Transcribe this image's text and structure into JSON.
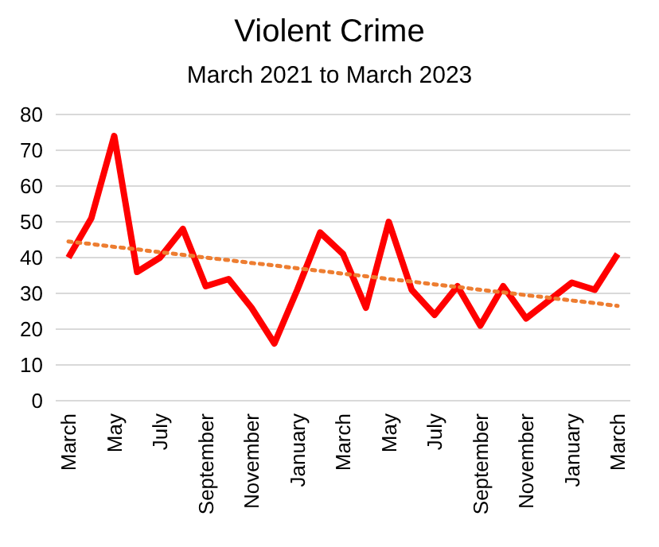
{
  "chart_data": {
    "type": "line",
    "title": "Violent Crime",
    "subtitle": "March 2021 to March 2023",
    "categories": [
      "March",
      null,
      "May",
      null,
      "July",
      null,
      "September",
      null,
      "November",
      null,
      "January",
      null,
      "March",
      null,
      "May",
      null,
      "July",
      null,
      "September",
      null,
      "November",
      null,
      "January",
      null,
      "March"
    ],
    "series": [
      {
        "color": "#ff0000",
        "line_style": "solid",
        "values": [
          40,
          51,
          74,
          36,
          40,
          48,
          32,
          34,
          26,
          16,
          31,
          47,
          41,
          26,
          50,
          31,
          24,
          32,
          21,
          32,
          23,
          28,
          33,
          31,
          41
        ]
      },
      {
        "type": "line",
        "color": "#ed7d31",
        "line_style": "dotted",
        "values": [
          44.5,
          43.8,
          43,
          42.3,
          41.5,
          40.8,
          40,
          39.3,
          38.5,
          37.8,
          37,
          36.3,
          35.5,
          34.8,
          34,
          33.3,
          32.5,
          31.8,
          31,
          30.3,
          29.5,
          28.8,
          28,
          27.3,
          26.5
        ]
      }
    ],
    "ylim": [
      0,
      80
    ],
    "yticks": [
      0,
      10,
      20,
      30,
      40,
      50,
      60,
      70,
      80
    ],
    "grid": "y",
    "marker": "none"
  }
}
